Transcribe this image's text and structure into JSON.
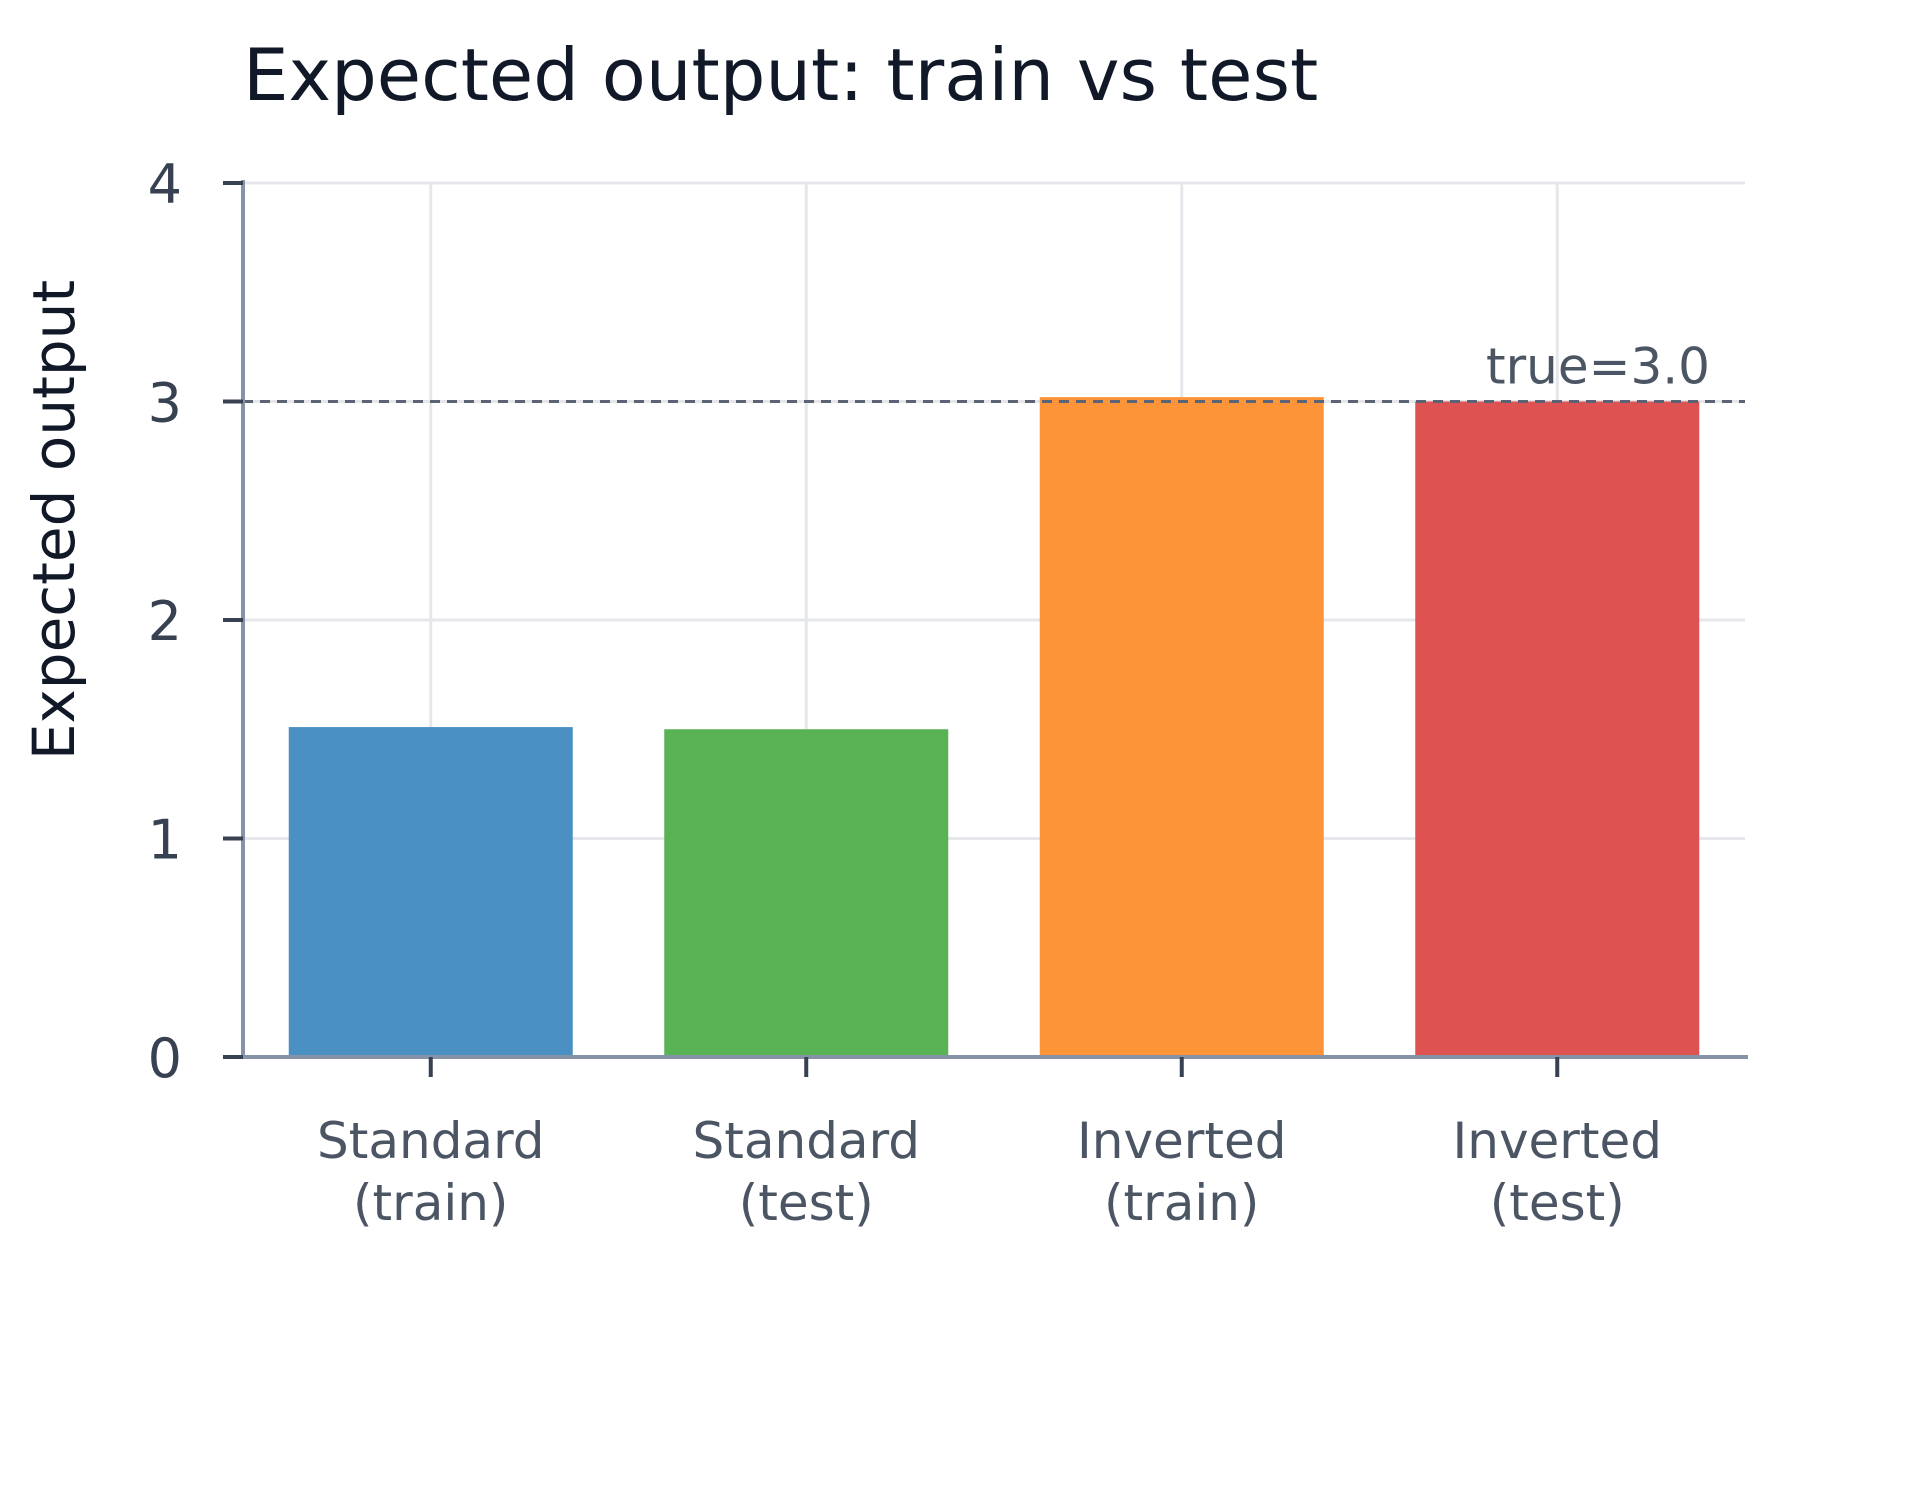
{
  "chart_data": {
    "type": "bar",
    "title": "Expected output: train vs test",
    "xlabel": "",
    "ylabel": "Expected output",
    "ylim": [
      0,
      4
    ],
    "yticks": [
      0,
      1,
      2,
      3,
      4
    ],
    "grid": true,
    "categories": [
      [
        "Standard",
        "(train)"
      ],
      [
        "Standard",
        "(test)"
      ],
      [
        "Inverted",
        "(train)"
      ],
      [
        "Inverted",
        "(test)"
      ]
    ],
    "values": [
      1.51,
      1.5,
      3.02,
      3.0
    ],
    "colors": [
      "#4a90c2",
      "#59b253",
      "#fd9538",
      "#de5252"
    ],
    "reference_line": {
      "value": 3.0,
      "label": "true=3.0",
      "style": "dashed",
      "color": "#5b6475"
    }
  }
}
